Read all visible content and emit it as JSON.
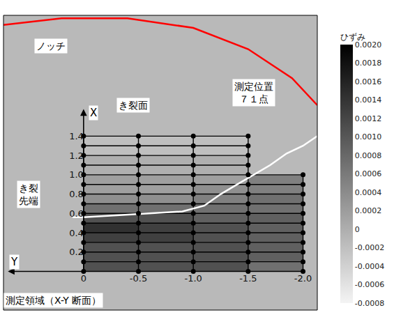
{
  "chart_data": {
    "type": "heatmap",
    "xlabel": "Y",
    "ylabel": "X",
    "xlim": [
      0.73,
      -2.13
    ],
    "ylim": [
      -0.4,
      2.65
    ],
    "xticks": [
      0,
      -0.5,
      {
        "value": -1,
        "label": "-1.0"
      },
      -1.5,
      {
        "value": -2,
        "label": "-2.0"
      }
    ],
    "yticks": [
      0.2,
      0.4,
      0.6,
      0.8,
      {
        "value": 1,
        "label": "1.0"
      },
      1.2,
      1.4
    ],
    "grid": false,
    "annotations": [
      "ノッチ",
      "き裂面",
      [
        "測定位置",
        "７１点"
      ],
      [
        "き裂",
        "先端"
      ],
      "測定領域（X-Y 断面）"
    ],
    "strain": {
      "x_edges": [
        0,
        -0.5,
        -1.0,
        -1.5,
        -2.0
      ],
      "y_edges": [
        0,
        0.1,
        0.2,
        0.3,
        0.4,
        0.5,
        0.6,
        0.7,
        0.8,
        0.9,
        1.0,
        1.1,
        1.2,
        1.3,
        1.4
      ],
      "z": [
        [
          0.0012,
          0.0012,
          0.0012,
          0.0008
        ],
        [
          0.0012,
          0.0012,
          0.0012,
          0.001
        ],
        [
          0.0012,
          0.0012,
          0.0012,
          0.001
        ],
        [
          0.0014,
          0.0014,
          0.0012,
          0.001
        ],
        [
          0.0016,
          0.0014,
          0.0012,
          0.001
        ],
        [
          0.0012,
          0.0012,
          0.001,
          0.001
        ],
        [
          0.0008,
          0.0008,
          0.0008,
          0.0008
        ],
        [
          0.0004,
          0.0004,
          0.0006,
          0.0008
        ],
        [
          0.0002,
          0.0002,
          0.0004,
          0.0006
        ],
        [
          0.0002,
          0.0002,
          0.0002,
          0.0006
        ],
        [
          0,
          0,
          0,
          null
        ],
        [
          0,
          0,
          0,
          null
        ],
        [
          -0.0002,
          -0.0002,
          -0.0002,
          null
        ],
        [
          -0.0002,
          -0.0002,
          -0.0002,
          null
        ]
      ]
    },
    "colorbar": {
      "title": "ひずみ",
      "range": [
        -0.0008,
        0.002
      ],
      "ticks": [
        {
          "value": 0.002,
          "label": "0.0020"
        },
        0.0018,
        0.0016,
        0.0014,
        0.0012,
        {
          "value": 0.001,
          "label": "0.0010"
        },
        0.0008,
        0.0006,
        0.0004,
        0.0002,
        0,
        -0.0002,
        -0.0004,
        -0.0006,
        -0.0008
      ]
    },
    "points": {
      "x": [
        0,
        0,
        0,
        0,
        0,
        0,
        0,
        0,
        0,
        0,
        0,
        0,
        0,
        0,
        0,
        -0.5,
        -0.5,
        -0.5,
        -0.5,
        -0.5,
        -0.5,
        -0.5,
        -0.5,
        -0.5,
        -0.5,
        -0.5,
        -0.5,
        -0.5,
        -0.5,
        -0.5,
        -1.0,
        -1.0,
        -1.0,
        -1.0,
        -1.0,
        -1.0,
        -1.0,
        -1.0,
        -1.0,
        -1.0,
        -1.0,
        -1.0,
        -1.0,
        -1.0,
        -1.0,
        -1.5,
        -1.5,
        -1.5,
        -1.5,
        -1.5,
        -1.5,
        -1.5,
        -1.5,
        -1.5,
        -1.5,
        -1.5,
        -1.5,
        -1.5,
        -1.5,
        -1.5,
        -2.0,
        -2.0,
        -2.0,
        -2.0,
        -2.0,
        -2.0,
        -2.0,
        -2.0,
        -2.0,
        -2.0,
        -2.0
      ],
      "y": [
        0,
        0.1,
        0.2,
        0.3,
        0.4,
        0.5,
        0.6,
        0.7,
        0.8,
        0.9,
        1.0,
        1.1,
        1.2,
        1.3,
        1.4,
        0,
        0.1,
        0.2,
        0.3,
        0.4,
        0.5,
        0.6,
        0.7,
        0.8,
        0.9,
        1.0,
        1.1,
        1.2,
        1.3,
        1.4,
        0,
        0.1,
        0.2,
        0.3,
        0.4,
        0.5,
        0.6,
        0.7,
        0.8,
        0.9,
        1.0,
        1.1,
        1.2,
        1.3,
        1.4,
        0,
        0.1,
        0.2,
        0.3,
        0.4,
        0.5,
        0.6,
        0.7,
        0.8,
        0.9,
        1.0,
        1.1,
        1.2,
        1.3,
        1.4,
        0,
        0.1,
        0.2,
        0.3,
        0.4,
        0.5,
        0.6,
        0.7,
        0.8,
        0.9,
        1.0
      ],
      "color": "#000000"
    },
    "notch_outline": {
      "x": [
        0.73,
        0.2,
        -0.4,
        -1.0,
        -1.5,
        -1.9,
        -2.13
      ],
      "y": [
        2.55,
        2.62,
        2.62,
        2.52,
        2.3,
        2.0,
        1.72
      ],
      "color": "#ff0000"
    },
    "crack_front": {
      "x": [
        0.1,
        0,
        -0.3,
        -0.6,
        -0.9,
        -1.1,
        -1.25,
        -1.4,
        -1.55,
        -1.7,
        -1.85,
        -2.0,
        -2.13
      ],
      "y": [
        0.56,
        0.56,
        0.58,
        0.6,
        0.62,
        0.68,
        0.8,
        0.9,
        1.0,
        1.1,
        1.22,
        1.3,
        1.4
      ],
      "color": "#ffffff"
    }
  }
}
